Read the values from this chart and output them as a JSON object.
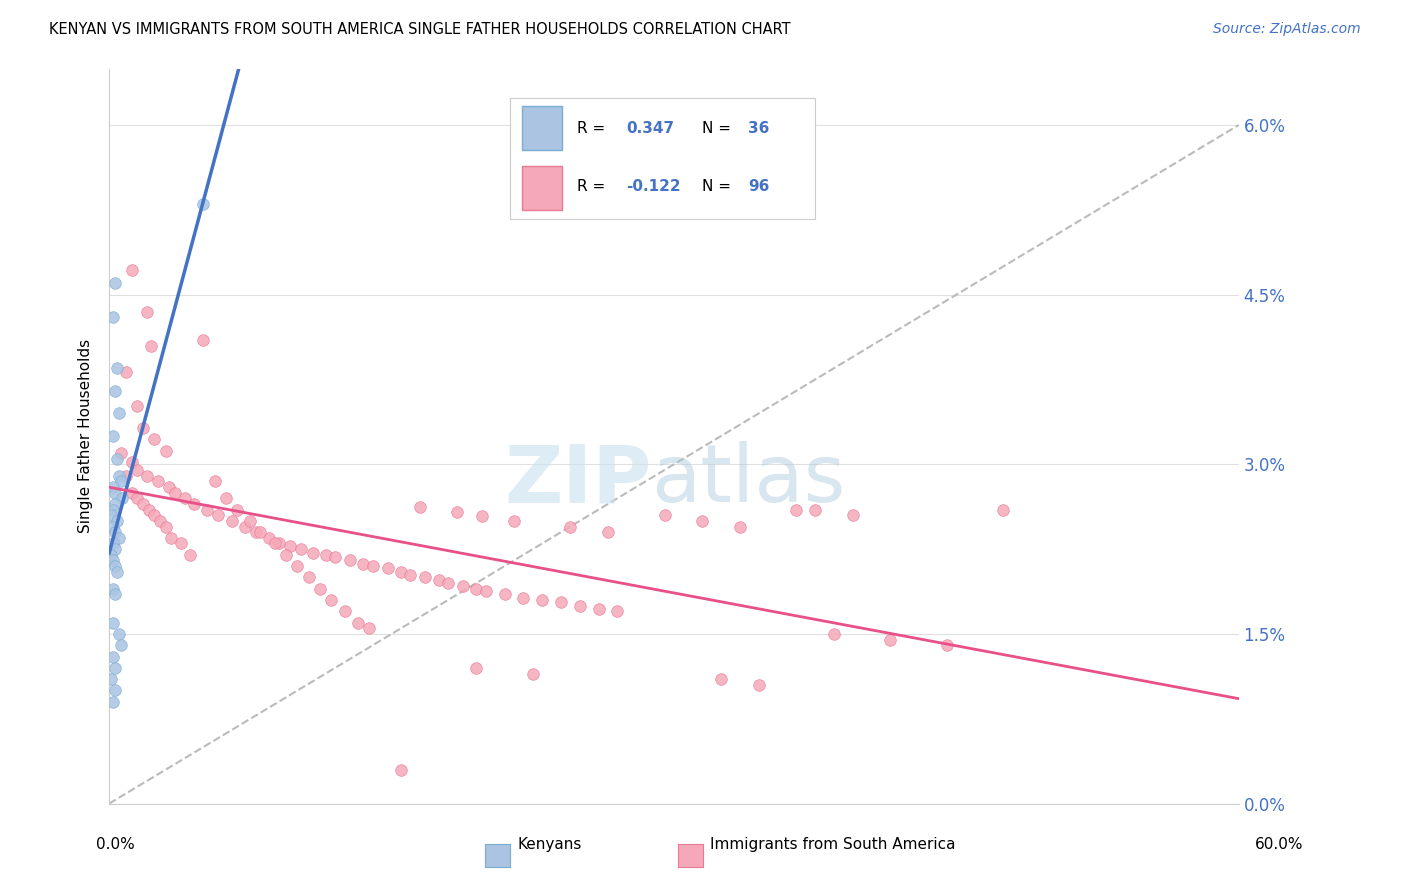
{
  "title": "KENYAN VS IMMIGRANTS FROM SOUTH AMERICA SINGLE FATHER HOUSEHOLDS CORRELATION CHART",
  "source": "Source: ZipAtlas.com",
  "ylabel": "Single Father Households",
  "ytick_vals": [
    0.0,
    1.5,
    3.0,
    4.5,
    6.0
  ],
  "xlim": [
    0.0,
    60.0
  ],
  "ylim": [
    0.0,
    6.5
  ],
  "kenyan_color": "#aac4e2",
  "kenyan_edge": "#7badd4",
  "sa_color": "#f5a8b8",
  "sa_edge": "#e87a96",
  "trend_kenyan_color": "#4472c4",
  "trend_sa_color": "#e8508a",
  "trend_diagonal_color": "#bbbbbb",
  "kenyan_x": [
    0.3,
    0.2,
    0.4,
    0.3,
    0.5,
    0.2,
    0.4,
    0.5,
    0.6,
    0.2,
    0.3,
    0.7,
    0.3,
    0.2,
    0.1,
    0.4,
    0.2,
    0.3,
    0.5,
    0.2,
    0.3,
    0.1,
    0.2,
    0.3,
    0.4,
    0.2,
    0.3,
    0.2,
    0.5,
    0.6,
    0.2,
    0.3,
    0.1,
    0.3,
    0.2,
    5.0
  ],
  "kenyan_y": [
    4.6,
    4.3,
    3.85,
    3.65,
    3.45,
    3.25,
    3.05,
    2.9,
    2.85,
    2.8,
    2.75,
    2.7,
    2.65,
    2.6,
    2.55,
    2.5,
    2.45,
    2.4,
    2.35,
    2.3,
    2.25,
    2.2,
    2.15,
    2.1,
    2.05,
    1.9,
    1.85,
    1.6,
    1.5,
    1.4,
    1.3,
    1.2,
    1.1,
    1.0,
    0.9,
    5.3
  ],
  "sa_x": [
    1.2,
    2.0,
    2.2,
    0.9,
    1.5,
    1.8,
    2.4,
    3.0,
    1.2,
    1.5,
    2.0,
    2.6,
    3.2,
    3.5,
    4.0,
    4.5,
    5.2,
    5.8,
    6.5,
    7.2,
    7.8,
    8.5,
    9.0,
    9.6,
    10.2,
    10.8,
    11.5,
    12.0,
    12.8,
    13.5,
    14.0,
    14.8,
    15.5,
    16.0,
    16.8,
    17.5,
    18.0,
    18.8,
    19.5,
    20.0,
    21.0,
    22.0,
    23.0,
    24.0,
    25.0,
    26.0,
    27.0,
    0.6,
    0.9,
    1.2,
    1.5,
    1.8,
    2.1,
    2.4,
    2.7,
    3.0,
    3.3,
    3.8,
    4.3,
    5.0,
    5.6,
    6.2,
    6.8,
    7.5,
    8.0,
    8.8,
    9.4,
    10.0,
    10.6,
    11.2,
    11.8,
    12.5,
    13.2,
    13.8,
    16.5,
    18.5,
    19.8,
    21.5,
    24.5,
    26.5,
    29.5,
    31.5,
    33.5,
    36.5,
    38.5,
    41.5,
    44.5,
    47.5,
    15.5,
    19.5,
    22.5,
    32.5,
    34.5,
    37.5,
    39.5
  ],
  "sa_y": [
    4.72,
    4.35,
    4.05,
    3.82,
    3.52,
    3.32,
    3.22,
    3.12,
    3.02,
    2.95,
    2.9,
    2.85,
    2.8,
    2.75,
    2.7,
    2.65,
    2.6,
    2.55,
    2.5,
    2.45,
    2.4,
    2.35,
    2.3,
    2.28,
    2.25,
    2.22,
    2.2,
    2.18,
    2.15,
    2.12,
    2.1,
    2.08,
    2.05,
    2.02,
    2.0,
    1.98,
    1.95,
    1.92,
    1.9,
    1.88,
    1.85,
    1.82,
    1.8,
    1.78,
    1.75,
    1.72,
    1.7,
    3.1,
    2.9,
    2.75,
    2.7,
    2.65,
    2.6,
    2.55,
    2.5,
    2.45,
    2.35,
    2.3,
    2.2,
    4.1,
    2.85,
    2.7,
    2.6,
    2.5,
    2.4,
    2.3,
    2.2,
    2.1,
    2.0,
    1.9,
    1.8,
    1.7,
    1.6,
    1.55,
    2.62,
    2.58,
    2.54,
    2.5,
    2.45,
    2.4,
    2.55,
    2.5,
    2.45,
    2.6,
    1.5,
    1.45,
    1.4,
    2.6,
    0.3,
    1.2,
    1.15,
    1.1,
    1.05,
    2.6,
    2.55
  ]
}
